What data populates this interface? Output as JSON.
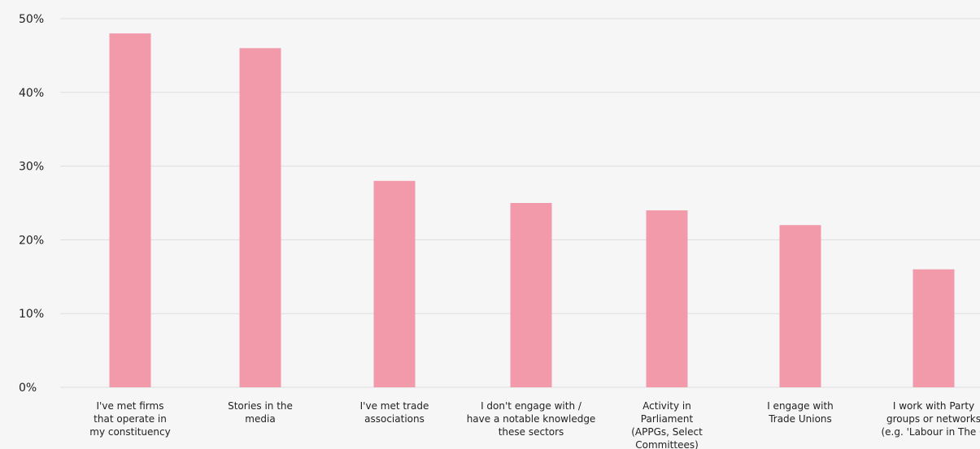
{
  "chart_data": {
    "type": "bar",
    "title": "",
    "xlabel": "",
    "ylabel": "",
    "ylim": [
      0,
      50
    ],
    "y_ticks": [
      "0%",
      "10%",
      "20%",
      "30%",
      "40%",
      "50%"
    ],
    "y_tick_values": [
      0,
      10,
      20,
      30,
      40,
      50
    ],
    "grid": true,
    "bar_color": "#f29aaa",
    "grid_color": "#dddddd",
    "categories": [
      [
        "I've met firms",
        "that operate in",
        "my constituency"
      ],
      [
        "Stories in the",
        "media"
      ],
      [
        "I've met trade",
        "associations"
      ],
      [
        "I don't engage with /",
        "have a notable knowledge",
        "these sectors"
      ],
      [
        "Activity in",
        "Parliament",
        "(APPGs, Select",
        "Committees)"
      ],
      [
        "I engage with",
        "Trade Unions"
      ],
      [
        "I work with Party",
        "groups or networks",
        "(e.g. 'Labour in The C"
      ]
    ],
    "values": [
      48,
      46,
      28,
      25,
      24,
      22,
      16
    ]
  }
}
